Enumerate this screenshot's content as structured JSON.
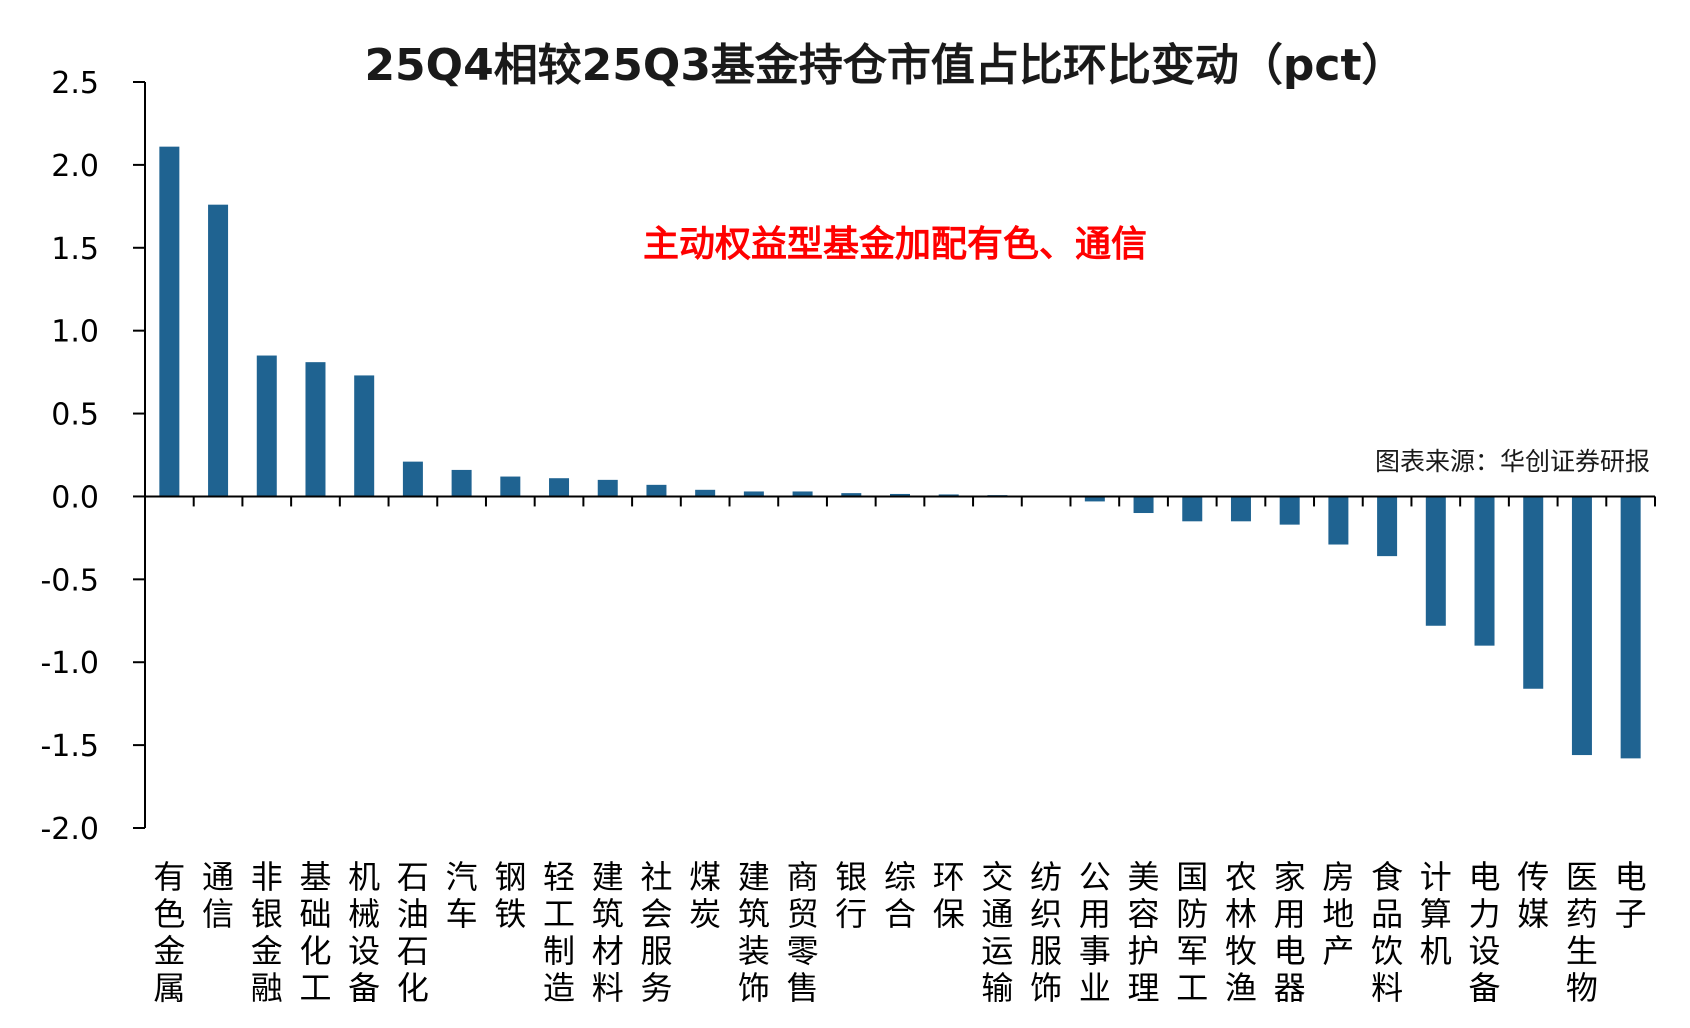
{
  "chart_data": {
    "type": "bar",
    "title": "25Q4相较25Q3基金持仓市值占比环比变动（pct）",
    "annotation": "主动权益型基金加配有色、通信",
    "source": "图表来源：华创证券研报",
    "xlabel": "",
    "ylabel": "",
    "ylim": [
      -2.0,
      2.5
    ],
    "yticks": [
      "2.5",
      "2.0",
      "1.5",
      "1.0",
      "0.5",
      "0.0",
      "-0.5",
      "-1.0",
      "-1.5",
      "-2.0"
    ],
    "ytick_values": [
      2.5,
      2.0,
      1.5,
      1.0,
      0.5,
      0.0,
      -0.5,
      -1.0,
      -1.5,
      -2.0
    ],
    "grid": false,
    "bar_color": "#1f6391",
    "categories": [
      "有色金属",
      "通信",
      "非银金融",
      "基础化工",
      "机械设备",
      "石油石化",
      "汽车",
      "钢铁",
      "轻工制造",
      "建筑材料",
      "社会服务",
      "煤炭",
      "建筑装饰",
      "商贸零售",
      "银行",
      "综合",
      "环保",
      "交通运输",
      "纺织服饰",
      "公用事业",
      "美容护理",
      "国防军工",
      "农林牧渔",
      "家用电器",
      "房地产",
      "食品饮料",
      "计算机",
      "电力设备",
      "传媒",
      "医药生物",
      "电子"
    ],
    "values": [
      2.11,
      1.76,
      0.85,
      0.81,
      0.73,
      0.21,
      0.16,
      0.12,
      0.11,
      0.1,
      0.07,
      0.04,
      0.03,
      0.03,
      0.02,
      0.015,
      0.012,
      0.008,
      0.003,
      -0.03,
      -0.1,
      -0.15,
      -0.15,
      -0.17,
      -0.29,
      -0.36,
      -0.78,
      -0.9,
      -1.16,
      -1.56,
      -1.58
    ]
  }
}
